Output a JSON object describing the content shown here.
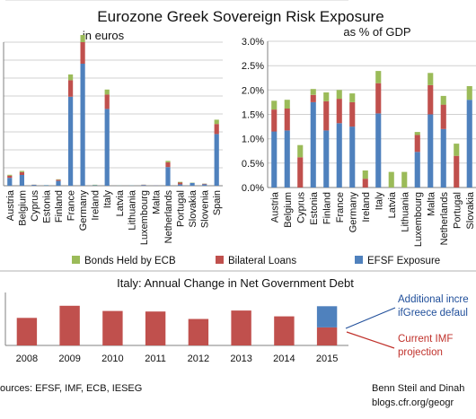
{
  "title": "Eurozone Greek Sovereign Risk Exposure",
  "colors": {
    "ecb": "#9bbb59",
    "bilateral": "#c0504d",
    "efsf": "#4f81bd",
    "grid": "#d0d0d0",
    "axis": "#808080",
    "note_blue": "#1f4e9a",
    "note_red": "#c0312b"
  },
  "legend": [
    {
      "name": "Bonds Held by ECB",
      "color_key": "ecb"
    },
    {
      "name": "Bilateral Loans",
      "color_key": "bilateral"
    },
    {
      "name": "EFSF Exposure",
      "color_key": "efsf"
    }
  ],
  "chart_data": [
    {
      "type": "bar",
      "stacked": true,
      "subtitle": "in euros",
      "categories": [
        "Austria",
        "Belgium",
        "Cyprus",
        "Estonia",
        "Finland",
        "France",
        "Germany",
        "Ireland",
        "Italy",
        "Latvia",
        "Lithuania",
        "Luxembourg",
        "Malta",
        "Netherlands",
        "Portugal",
        "Slovakia",
        "Slovenia",
        "Spain"
      ],
      "series": [
        {
          "name": "EFSF Exposure",
          "color_key": "efsf",
          "values": [
            5.5,
            7.5,
            0.6,
            0.4,
            3.4,
            62,
            85,
            0.4,
            53.5,
            0.1,
            0.2,
            0.5,
            0.2,
            13,
            1,
            2,
            1,
            36
          ]
        },
        {
          "name": "Bilateral Loans",
          "color_key": "bilateral",
          "values": [
            1.5,
            2,
            0.1,
            0,
            0.8,
            11.5,
            15,
            0,
            10,
            0,
            0,
            0.2,
            0.05,
            3.3,
            1.2,
            0,
            0.4,
            7
          ]
        },
        {
          "name": "Bonds Held by ECB",
          "color_key": "ecb",
          "values": [
            0.6,
            0.8,
            0.05,
            0.05,
            0.3,
            4,
            5,
            0.3,
            3.5,
            0.05,
            0.05,
            0.05,
            0.03,
            1,
            0.5,
            0.2,
            0.1,
            3
          ]
        }
      ],
      "ymax": 100
    },
    {
      "type": "bar",
      "stacked": true,
      "subtitle": "as % of GDP",
      "categories": [
        "Austria",
        "Belgium",
        "Cyprus",
        "Estonia",
        "Finland",
        "France",
        "Germany",
        "Ireland",
        "Italy",
        "Latvia",
        "Lithuania",
        "Luxembourg",
        "Malta",
        "Netherlands",
        "Portugal",
        "Slovakia"
      ],
      "series": [
        {
          "name": "EFSF Exposure",
          "color_key": "efsf",
          "values": [
            1.15,
            1.17,
            0,
            1.75,
            1.17,
            1.32,
            1.25,
            0,
            1.52,
            0,
            0,
            0.73,
            1.5,
            1.2,
            0,
            1.8
          ]
        },
        {
          "name": "Bilateral Loans",
          "color_key": "bilateral",
          "values": [
            0.45,
            0.45,
            0.62,
            0.15,
            0.6,
            0.5,
            0.5,
            0.18,
            0.62,
            0,
            0,
            0.35,
            0.6,
            0.5,
            0.65,
            0
          ]
        },
        {
          "name": "Bonds Held by ECB",
          "color_key": "ecb",
          "values": [
            0.18,
            0.18,
            0.25,
            0.12,
            0.18,
            0.18,
            0.18,
            0.17,
            0.25,
            0.32,
            0.32,
            0.06,
            0.25,
            0.18,
            0.25,
            0.28
          ]
        }
      ],
      "yticks": [
        "0.0%",
        "0.5%",
        "1.0%",
        "1.5%",
        "2.0%",
        "2.5%",
        "3.0%"
      ],
      "ymax": 3.0
    },
    {
      "type": "bar",
      "stacked": true,
      "title": "Italy: Annual Change in Net Government  Debt",
      "categories": [
        "2008",
        "2009",
        "2010",
        "2011",
        "2012",
        "2013",
        "2014",
        "2015"
      ],
      "series": [
        {
          "name": "Current IMF projection",
          "color_key": "bilateral",
          "values": [
            52,
            75,
            65,
            64,
            50,
            66,
            55,
            34
          ]
        },
        {
          "name": "Additional increase if Greece defaults",
          "color_key": "efsf",
          "values": [
            0,
            0,
            0,
            0,
            0,
            0,
            0,
            40
          ]
        }
      ],
      "ymax": 100
    }
  ],
  "annotations": {
    "additional_line1": "Additional incre",
    "additional_line2": "ifGreece defaul",
    "imf_line1": "Current IMF",
    "imf_line2": "projection"
  },
  "footer": {
    "sources": "ources: EFSF,  IMF, ECB, IESEG",
    "credit": "Benn Steil and Dinah",
    "url": "blogs.cfr.org/geogr"
  }
}
